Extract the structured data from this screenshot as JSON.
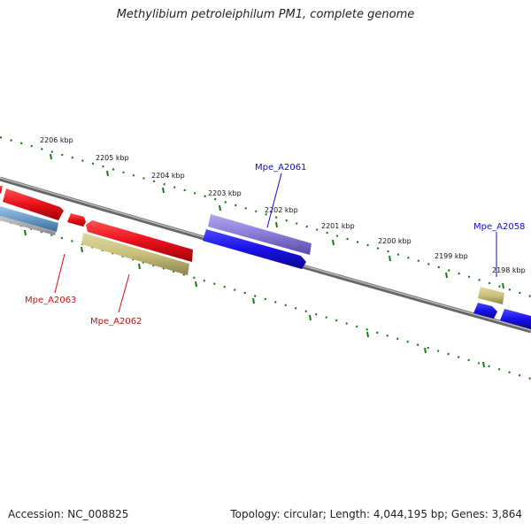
{
  "title": "Methylibium petroleiphilum PM1, complete genome",
  "footer": {
    "accession": "Accession: NC_008825",
    "summary": "Topology: circular; Length: 4,044,195 bp; Genes: 3,864"
  },
  "scale_labels": [
    "2206 kbp",
    "2205 kbp",
    "2204 kbp",
    "2203 kbp",
    "2202 kbp",
    "2201 kbp",
    "2200 kbp",
    "2199 kbp",
    "2198 kbp"
  ],
  "gene_labels": [
    {
      "text": "Mpe_A2061",
      "color": "#1010c0"
    },
    {
      "text": "Mpe_A2058",
      "color": "#1010c0"
    },
    {
      "text": "Mpe_A2063",
      "color": "#cc1111"
    },
    {
      "text": "Mpe_A2062",
      "color": "#cc1111"
    }
  ],
  "colors": {
    "backbone": "#8a8a8a",
    "ticks": "#1a7a1a",
    "forward_strand_gene": "#e8101a",
    "reverse_strand_gene": "#1a10e8",
    "rna_gene": "#8a7ad8",
    "pseudo_gene": "#c8c07a",
    "other_gene": "#6a9ac8"
  }
}
